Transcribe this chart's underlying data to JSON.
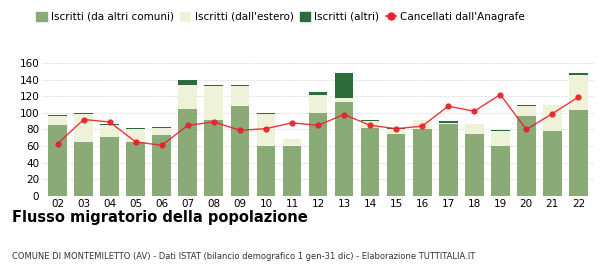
{
  "years": [
    "02",
    "03",
    "04",
    "05",
    "06",
    "07",
    "08",
    "09",
    "10",
    "11",
    "12",
    "13",
    "14",
    "15",
    "16",
    "17",
    "18",
    "19",
    "20",
    "21",
    "22"
  ],
  "iscritti_comuni": [
    85,
    65,
    71,
    65,
    73,
    105,
    91,
    108,
    60,
    60,
    100,
    113,
    82,
    74,
    80,
    87,
    75,
    60,
    96,
    78,
    103
  ],
  "iscritti_estero": [
    11,
    34,
    14,
    16,
    9,
    28,
    41,
    24,
    39,
    8,
    22,
    5,
    8,
    7,
    11,
    1,
    11,
    18,
    12,
    31,
    43
  ],
  "iscritti_altri": [
    2,
    1,
    2,
    1,
    1,
    7,
    1,
    2,
    1,
    1,
    3,
    30,
    2,
    1,
    1,
    2,
    1,
    1,
    1,
    1,
    2
  ],
  "cancellati": [
    63,
    92,
    89,
    65,
    61,
    85,
    89,
    79,
    81,
    88,
    85,
    98,
    85,
    81,
    84,
    108,
    102,
    122,
    80,
    99,
    119
  ],
  "color_comuni": "#8aaa78",
  "color_estero": "#edf2d8",
  "color_altri": "#2d6b3c",
  "color_cancellati": "#e8222a",
  "title": "Flusso migratorio della popolazione",
  "subtitle": "COMUNE DI MONTEMILETTO (AV) - Dati ISTAT (bilancio demografico 1 gen-31 dic) - Elaborazione TUTTITALIA.IT",
  "legend_comuni": "Iscritti (da altri comuni)",
  "legend_estero": "Iscritti (dall'estero)",
  "legend_altri": "Iscritti (altri)",
  "legend_cancellati": "Cancellati dall'Anagrafe",
  "ylim": [
    0,
    165
  ],
  "yticks": [
    0,
    20,
    40,
    60,
    80,
    100,
    120,
    140,
    160
  ],
  "bar_width": 0.72,
  "bg_color": "#ffffff",
  "grid_color": "#d8d8d8",
  "tick_fontsize": 7.5,
  "legend_fontsize": 7.5,
  "title_fontsize": 10.5,
  "subtitle_fontsize": 6.0
}
